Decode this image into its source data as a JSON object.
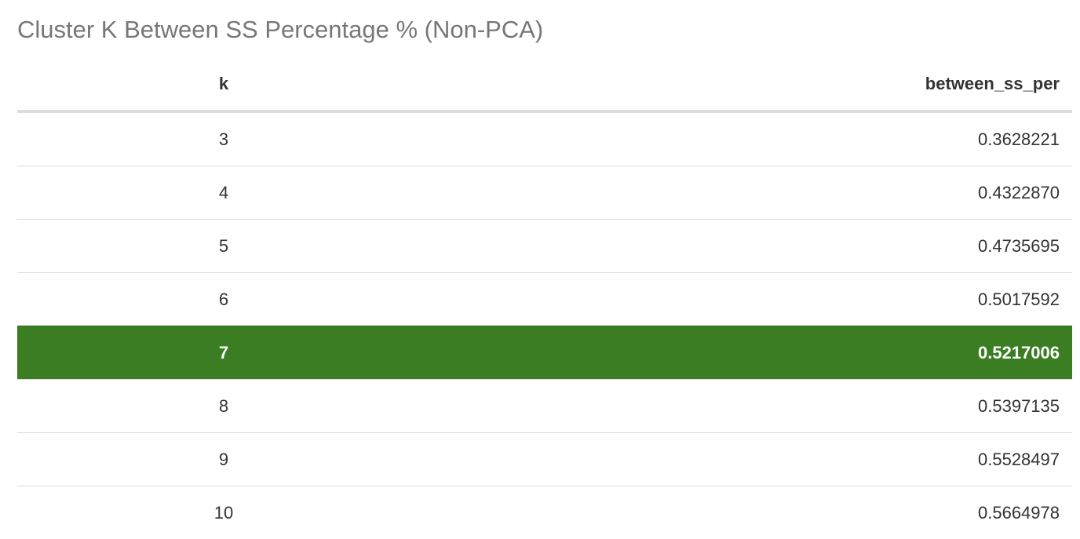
{
  "title": "Cluster K Between SS Percentage % (Non-PCA)",
  "table": {
    "headers": [
      "k",
      "between_ss_per"
    ],
    "rows": [
      {
        "k": "3",
        "value": "0.3628221",
        "highlighted": false
      },
      {
        "k": "4",
        "value": "0.4322870",
        "highlighted": false
      },
      {
        "k": "5",
        "value": "0.4735695",
        "highlighted": false
      },
      {
        "k": "6",
        "value": "0.5017592",
        "highlighted": false
      },
      {
        "k": "7",
        "value": "0.5217006",
        "highlighted": true
      },
      {
        "k": "8",
        "value": "0.5397135",
        "highlighted": false
      },
      {
        "k": "9",
        "value": "0.5528497",
        "highlighted": false
      },
      {
        "k": "10",
        "value": "0.5664978",
        "highlighted": false
      }
    ]
  },
  "colors": {
    "highlight_row": "#3a7d22",
    "highlight_text": "#ffffff",
    "title_text": "#777777",
    "border": "#dddddd"
  }
}
